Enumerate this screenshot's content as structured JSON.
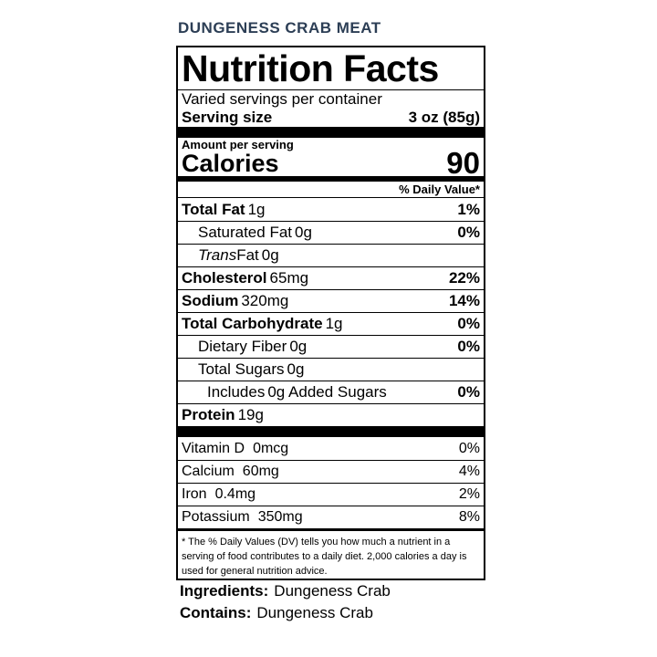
{
  "header": {
    "title": "DUNGENESS CRAB MEAT"
  },
  "label": {
    "title": "Nutrition Facts",
    "servings": "Varied servings per container",
    "serving_size": {
      "label": "Serving size",
      "value": "3 oz (85g)"
    },
    "amount_per_serving": "Amount per serving",
    "calories": {
      "label": "Calories",
      "value": "90"
    },
    "dv_header": "% Daily Value*",
    "nutrients": [
      {
        "name": "Total Fat",
        "amount": "1g",
        "dv": "1%"
      },
      {
        "name": "Saturated Fat",
        "amount": "0g",
        "dv": "0%"
      },
      {
        "name_italic": "Trans",
        "name": "Fat",
        "amount": "0g"
      },
      {
        "name": "Cholesterol",
        "amount": "65mg",
        "dv": "22%"
      },
      {
        "name": "Sodium",
        "amount": "320mg",
        "dv": "14%"
      },
      {
        "name": "Total Carbohydrate",
        "amount": "1g",
        "dv": "0%"
      },
      {
        "name": "Dietary Fiber",
        "amount": "0g",
        "dv": "0%"
      },
      {
        "name": "Total Sugars",
        "amount": "0g"
      },
      {
        "name": "Includes",
        "amount": "0g Added Sugars",
        "dv": "0%"
      },
      {
        "name": "Protein",
        "amount": "19g"
      }
    ],
    "vitamins": [
      {
        "name": "Vitamin D",
        "amount": "0mcg",
        "dv": "0%"
      },
      {
        "name": "Calcium",
        "amount": "60mg",
        "dv": "4%"
      },
      {
        "name": "Iron",
        "amount": "0.4mg",
        "dv": "2%"
      },
      {
        "name": "Potassium",
        "amount": "350mg",
        "dv": "8%"
      }
    ],
    "footnote": "* The % Daily Values (DV) tells you how much a nutrient in a serving of food contributes to a daily diet. 2,000 calories a day is used for general nutrition advice."
  },
  "ingredients": {
    "label": "Ingredients:",
    "value": "Dungeness Crab"
  },
  "contains": {
    "label": "Contains:",
    "value": "Dungeness Crab"
  }
}
